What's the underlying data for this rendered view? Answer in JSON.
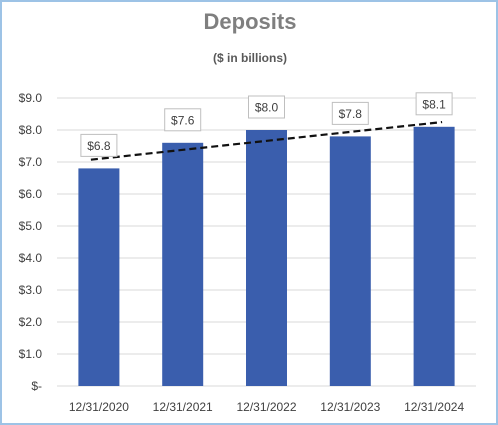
{
  "chart_data": {
    "type": "bar",
    "title": "Deposits",
    "subtitle": "($ in billions)",
    "categories": [
      "12/31/2020",
      "12/31/2021",
      "12/31/2022",
      "12/31/2023",
      "12/31/2024"
    ],
    "values": [
      6.8,
      7.6,
      8.0,
      7.8,
      8.1
    ],
    "data_labels": [
      "$6.8",
      "$7.6",
      "$8.0",
      "$7.8",
      "$8.1"
    ],
    "y_ticks": [
      0,
      1,
      2,
      3,
      4,
      5,
      6,
      7,
      8,
      9
    ],
    "y_tick_labels": [
      "$-",
      "$1.0",
      "$2.0",
      "$3.0",
      "$4.0",
      "$5.0",
      "$6.0",
      "$7.0",
      "$8.0",
      "$9.0"
    ],
    "ylim": [
      0,
      9
    ],
    "trendline": {
      "style": "dashed",
      "type": "linear"
    },
    "grid": true,
    "colors": {
      "bar": "#3a5ead",
      "grid": "#d9d9d9",
      "trend": "#111111",
      "frame": "#9dc3e6",
      "label_box": "#bfbfbf"
    }
  }
}
